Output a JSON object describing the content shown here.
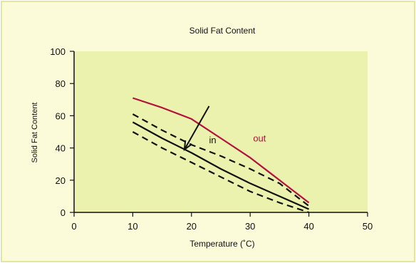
{
  "colors": {
    "frame_fill": "#fbfbd9",
    "frame_border": "#e2e79a",
    "plot_fill": "#ebf2ad",
    "axis": "#111111",
    "out_series": "#b3123d",
    "in_series": "#111111",
    "annotation_in": "#111111",
    "annotation_out": "#b3123d"
  },
  "chart_data": {
    "type": "line",
    "title": "Solid Fat Content",
    "xlabel": "Temperature (˚C)",
    "ylabel": "Solid Fat Content",
    "xlim": [
      0,
      50
    ],
    "ylim": [
      0,
      100
    ],
    "x_ticks": [
      0,
      10,
      20,
      30,
      40,
      50
    ],
    "y_ticks": [
      0,
      20,
      40,
      60,
      80,
      100
    ],
    "grid": false,
    "legend": "none",
    "series": [
      {
        "color": "#b3123d",
        "style": "solid",
        "x": [
          10,
          15,
          20,
          25,
          30,
          35,
          40
        ],
        "y": [
          71,
          65,
          58,
          46,
          34,
          20,
          6
        ]
      },
      {
        "color": "#111111",
        "style": "solid",
        "x": [
          10,
          15,
          20,
          25,
          30,
          35,
          40
        ],
        "y": [
          56,
          46,
          37,
          27,
          18,
          10,
          2
        ]
      },
      {
        "color": "#111111",
        "style": "dashed",
        "x": [
          10,
          15,
          20,
          25,
          30,
          35,
          40
        ],
        "y": [
          61,
          51,
          42,
          35,
          27,
          18,
          4
        ]
      },
      {
        "color": "#111111",
        "style": "dashed",
        "x": [
          10,
          15,
          20,
          25,
          30,
          35,
          40
        ],
        "y": [
          50,
          40,
          31,
          22,
          13,
          6,
          0
        ]
      }
    ],
    "annotations": [
      {
        "text": "in",
        "x": 23,
        "y": 43,
        "color": "#111111"
      },
      {
        "text": "out",
        "x": 30.5,
        "y": 44,
        "color": "#b3123d"
      }
    ],
    "arrow": {
      "from": [
        23,
        66
      ],
      "to": [
        18.8,
        39
      ]
    }
  }
}
